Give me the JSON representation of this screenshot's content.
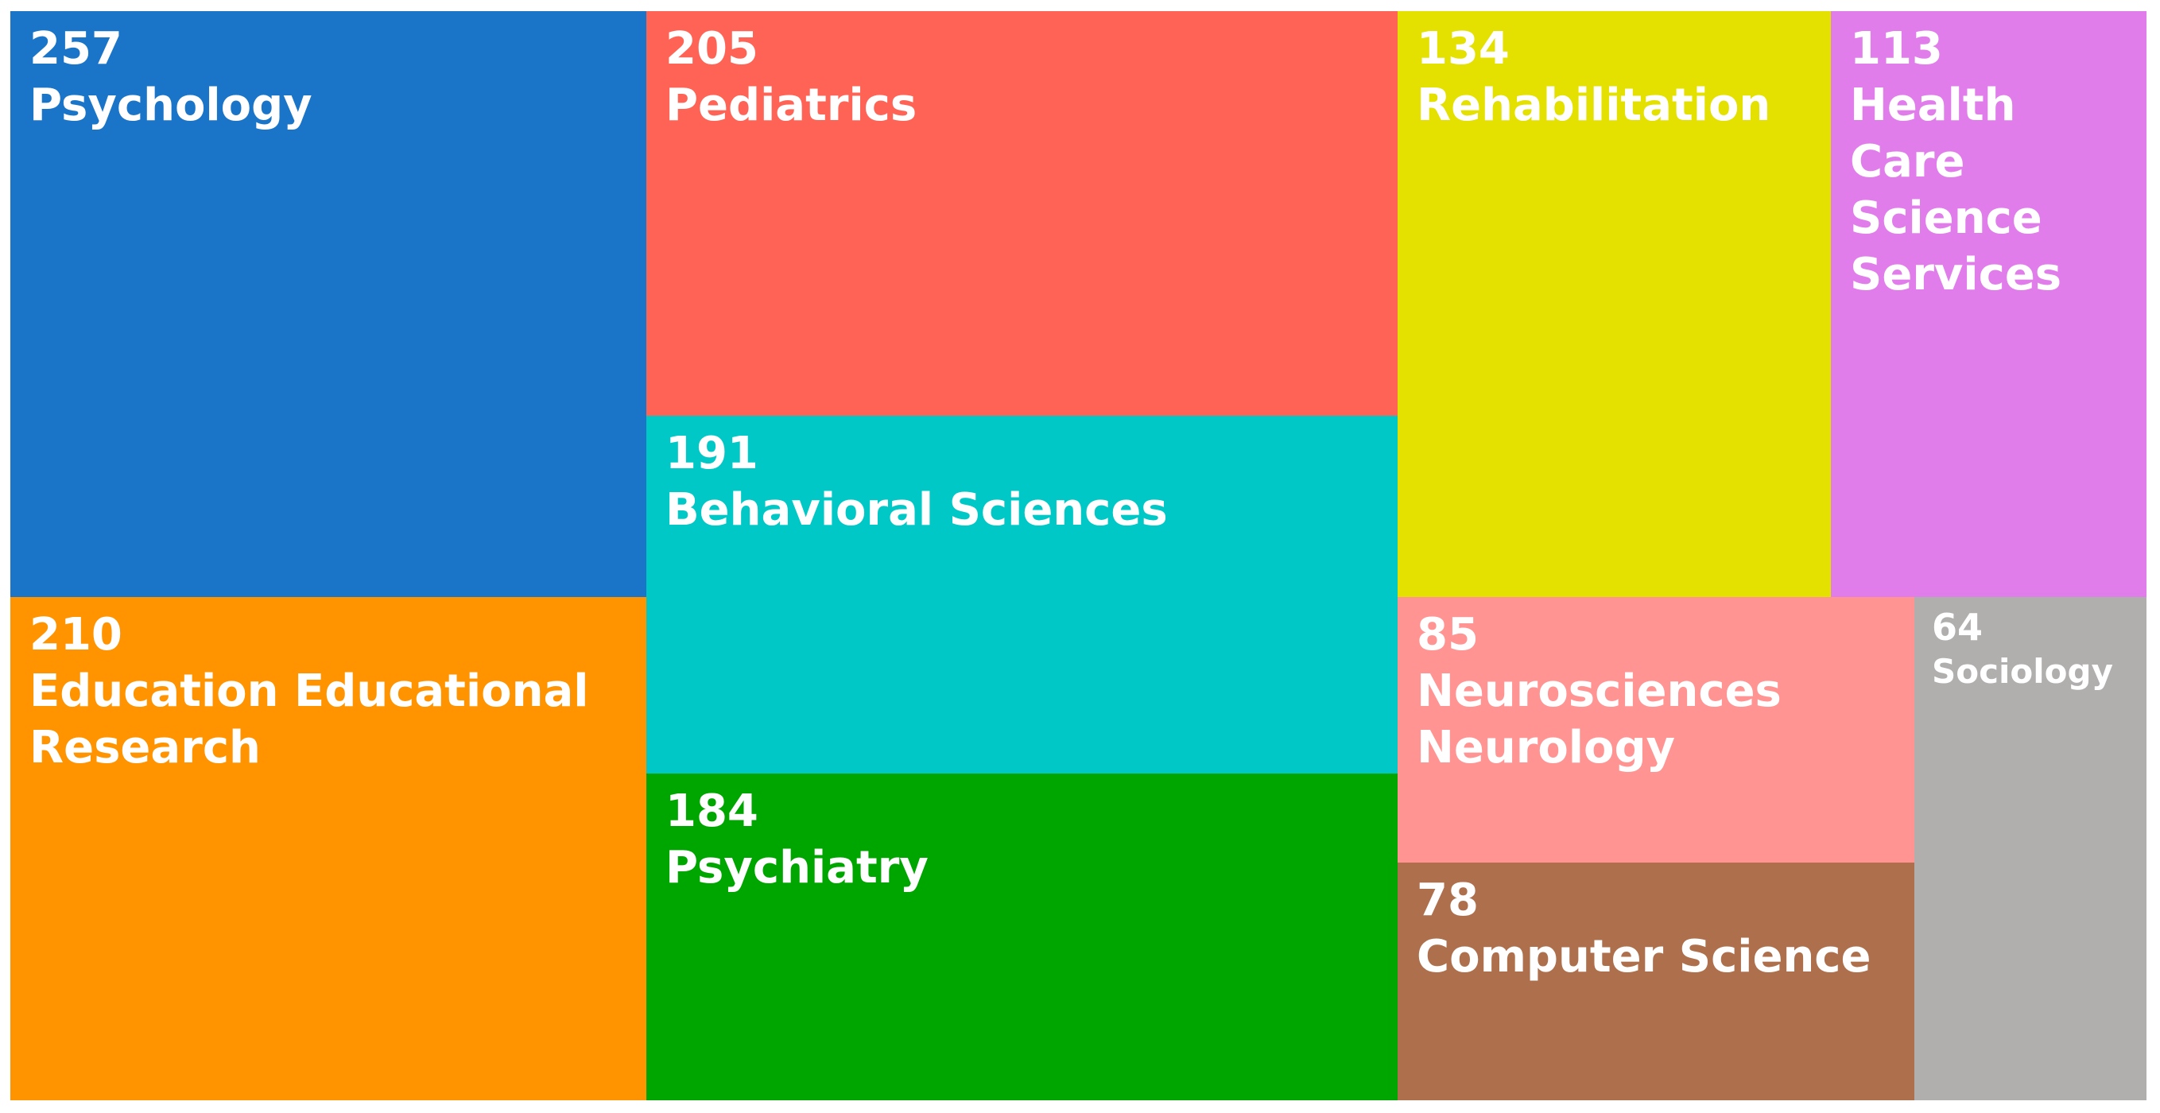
{
  "chart_data": {
    "type": "treemap",
    "title": "",
    "items": [
      {
        "label": "Psychology",
        "value": 257,
        "color": "#1a75c9"
      },
      {
        "label": "Education Educational Research",
        "value": 210,
        "color": "#ff9400"
      },
      {
        "label": "Pediatrics",
        "value": 205,
        "color": "#ff6355"
      },
      {
        "label": "Behavioral Sciences",
        "value": 191,
        "color": "#00c8c6"
      },
      {
        "label": "Psychiatry",
        "value": 184,
        "color": "#00a600"
      },
      {
        "label": "Rehabilitation",
        "value": 134,
        "color": "#e4e000"
      },
      {
        "label": "Health Care Science Services",
        "value": 113,
        "color": "#e07deb"
      },
      {
        "label": "Neurosciences Neurology",
        "value": 85,
        "color": "#ff9493"
      },
      {
        "label": "Computer Science",
        "value": 78,
        "color": "#ad6f4c"
      },
      {
        "label": "Sociology",
        "value": 64,
        "color": "#b1aeae"
      }
    ]
  }
}
